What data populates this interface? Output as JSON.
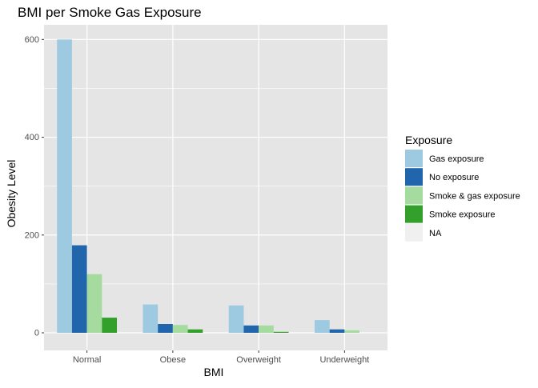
{
  "chart_data": {
    "type": "bar",
    "title": "BMI per Smoke Gas Exposure",
    "xlabel": "BMI",
    "ylabel": "Obesity Level",
    "categories": [
      "Normal",
      "Obese",
      "Overweight",
      "Underweight"
    ],
    "ylim": [
      -36,
      630
    ],
    "yticks": [
      0,
      200,
      400,
      600
    ],
    "grid": true,
    "legend": {
      "title": "Exposure",
      "placement": "right",
      "entries": [
        "Gas exposure",
        "No exposure",
        "Smoke & gas exposure",
        "Smoke exposure",
        "NA"
      ]
    },
    "series": [
      {
        "name": "Gas exposure",
        "color": "#9ecae1",
        "values": [
          600,
          58,
          56,
          26
        ]
      },
      {
        "name": "No exposure",
        "color": "#2166ac",
        "values": [
          179,
          18,
          15,
          7
        ]
      },
      {
        "name": "Smoke & gas exposure",
        "color": "#a6dba0",
        "values": [
          120,
          16,
          15,
          5
        ]
      },
      {
        "name": "Smoke exposure",
        "color": "#33a02c",
        "values": [
          31,
          7,
          2,
          null
        ]
      },
      {
        "name": "NA",
        "color": "#f0f0f0",
        "values": [
          null,
          null,
          null,
          null
        ]
      }
    ],
    "panel_background": "#e5e5e5",
    "grid_color": "#ffffff"
  }
}
